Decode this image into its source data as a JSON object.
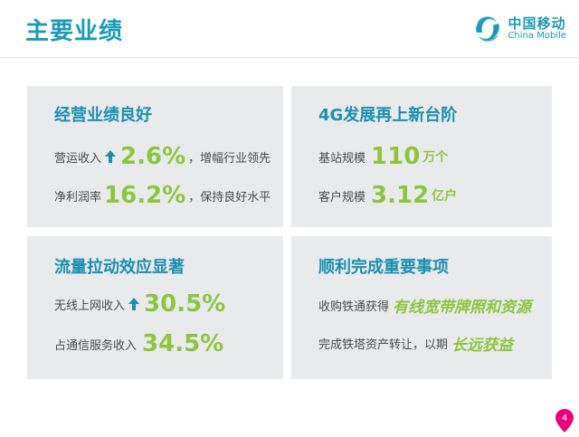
{
  "title": "主要业绩",
  "logo": {
    "cn": "中国移动",
    "en": "China Mobile"
  },
  "panels": [
    {
      "title": "经营业绩良好",
      "rows": [
        {
          "label": "营运收入",
          "arrow": "up",
          "value": "2.6%",
          "suffix": "，增幅行业领先"
        },
        {
          "label": "净利润率",
          "value": "16.2%",
          "suffix": "，保持良好水平"
        }
      ]
    },
    {
      "title": "4G发展再上新台阶",
      "rows": [
        {
          "label": "基站规模",
          "value": "110",
          "unit": "万个"
        },
        {
          "label": "客户规模",
          "value": "3.12",
          "unit": "亿户"
        }
      ]
    },
    {
      "title": "流量拉动效应显著",
      "rows": [
        {
          "label": "无线上网收入",
          "arrow": "up",
          "value": "30.5%"
        },
        {
          "label": "占通信服务收入",
          "value": "34.5%"
        }
      ]
    },
    {
      "title": "顺利完成重要事项",
      "rows": [
        {
          "label": "收购铁通获得",
          "highlight": "有线宽带牌照和资源"
        },
        {
          "label": "完成铁塔资产转让，以期",
          "highlight": "长远获益"
        }
      ]
    }
  ],
  "page_number": "4",
  "colors": {
    "brand": "#1a9ab8",
    "accent": "#8cc63f",
    "panel": "#e9eaec",
    "badge": "#e6007e"
  }
}
